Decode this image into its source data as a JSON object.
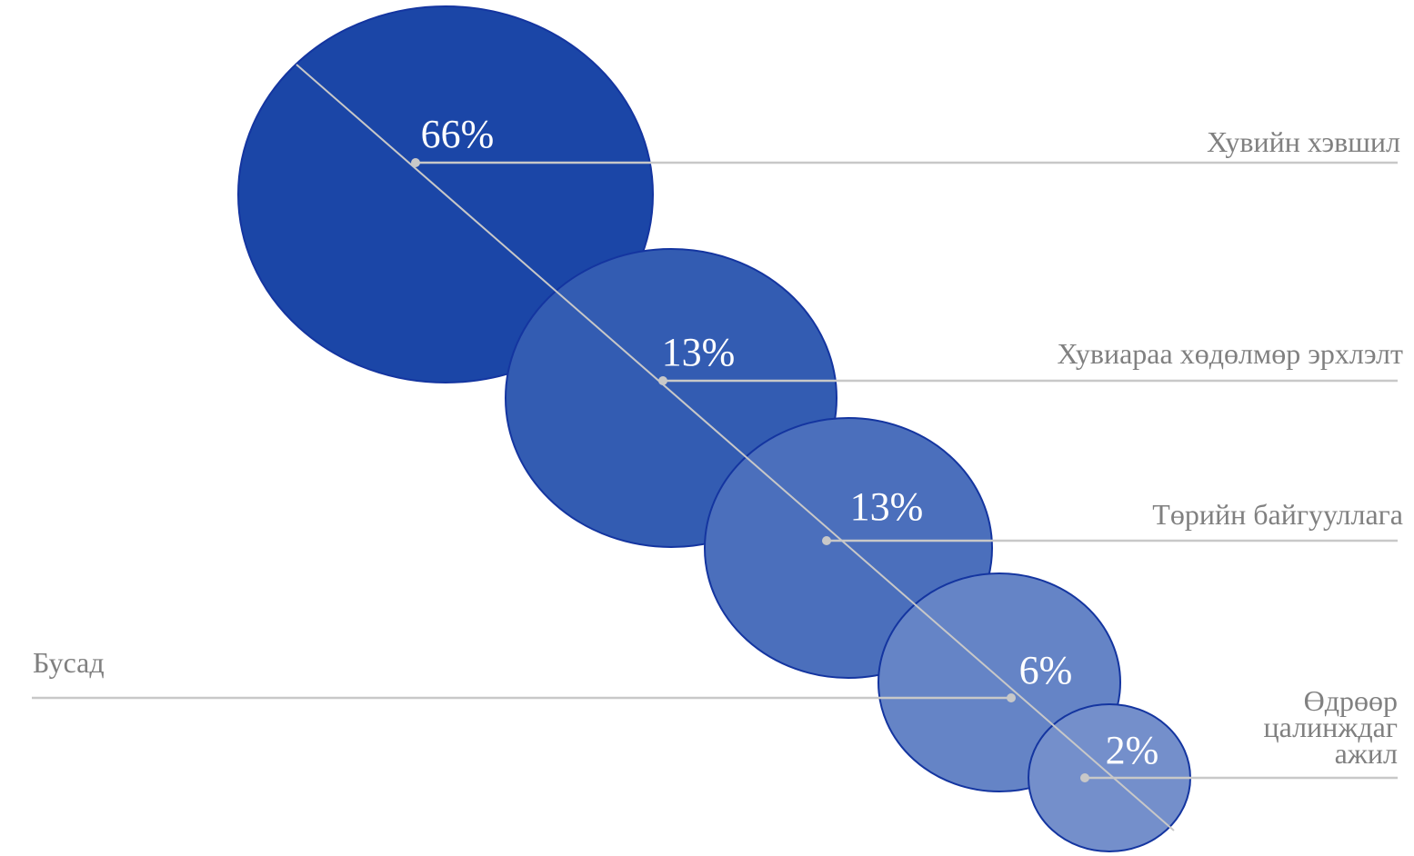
{
  "chart_data": {
    "type": "bubble",
    "title": "",
    "categories": [
      "Хувийн хэвшил",
      "Хувиараа хөдөлмөр эрхлэлт",
      "Төрийн байгууллага",
      "Бусад",
      "Өдрөөр цалинждаг ажил"
    ],
    "values": [
      66,
      13,
      13,
      6,
      2
    ],
    "value_labels": [
      "66%",
      "13%",
      "13%",
      "6%",
      "2%"
    ],
    "category_label_lines": [
      [
        "Хувийн хэвшил"
      ],
      [
        "Хувиараа хөдөлмөр эрхлэлт"
      ],
      [
        "Төрийн байгууллага"
      ],
      [
        "Бусад"
      ],
      [
        "Өдрөөр",
        "цалинждаг",
        "ажил"
      ]
    ],
    "legend": "none",
    "grid": false
  },
  "colors": {
    "bubble_fills": [
      "#1b46a7",
      "#335cb2",
      "#4b6fbc",
      "#6584c6",
      "#748fcb"
    ],
    "bubble_stroke": "#1435a0",
    "leader_line": "#c8c8c8",
    "label_text": "#808080",
    "value_text": "#ffffff"
  }
}
